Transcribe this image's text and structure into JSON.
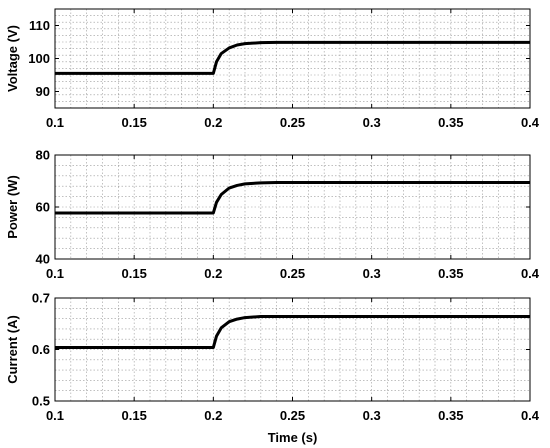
{
  "chart_data": [
    {
      "type": "line",
      "title": "",
      "xlabel": "",
      "ylabel": "Voltage (V)",
      "xlim": [
        0.1,
        0.4
      ],
      "ylim": [
        85,
        115
      ],
      "xticks": [
        "0.1",
        "0.15",
        "0.2",
        "0.25",
        "0.3",
        "0.35",
        "0.4"
      ],
      "yticks": [
        "90",
        "100",
        "110"
      ],
      "grid": true,
      "series": [
        {
          "x": [
            0.1,
            0.199,
            0.2,
            0.202,
            0.205,
            0.21,
            0.215,
            0.22,
            0.23,
            0.24,
            0.4
          ],
          "y": [
            95.5,
            95.5,
            95.5,
            99.0,
            101.5,
            103.2,
            104.1,
            104.5,
            104.8,
            104.9,
            104.9
          ]
        }
      ]
    },
    {
      "type": "line",
      "title": "",
      "xlabel": "",
      "ylabel": "Power (W)",
      "xlim": [
        0.1,
        0.4
      ],
      "ylim": [
        40,
        80
      ],
      "xticks": [
        "0.1",
        "0.15",
        "0.2",
        "0.25",
        "0.3",
        "0.35",
        "0.4"
      ],
      "yticks": [
        "40",
        "60",
        "80"
      ],
      "grid": true,
      "series": [
        {
          "x": [
            0.1,
            0.199,
            0.2,
            0.202,
            0.205,
            0.21,
            0.215,
            0.22,
            0.23,
            0.24,
            0.4
          ],
          "y": [
            57.7,
            57.7,
            57.7,
            61.8,
            64.8,
            67.3,
            68.3,
            68.9,
            69.3,
            69.4,
            69.4
          ]
        }
      ]
    },
    {
      "type": "line",
      "title": "",
      "xlabel": "Time (s)",
      "ylabel": "Current (A)",
      "xlim": [
        0.1,
        0.4
      ],
      "ylim": [
        0.5,
        0.7
      ],
      "xticks": [
        "0.1",
        "0.15",
        "0.2",
        "0.25",
        "0.3",
        "0.35",
        "0.4"
      ],
      "yticks": [
        "0.5",
        "0.6",
        "0.7"
      ],
      "grid": true,
      "series": [
        {
          "x": [
            0.1,
            0.199,
            0.2,
            0.202,
            0.205,
            0.21,
            0.215,
            0.22,
            0.23,
            0.24,
            0.4
          ],
          "y": [
            0.604,
            0.604,
            0.604,
            0.626,
            0.642,
            0.654,
            0.659,
            0.662,
            0.664,
            0.664,
            0.664
          ]
        }
      ]
    }
  ]
}
